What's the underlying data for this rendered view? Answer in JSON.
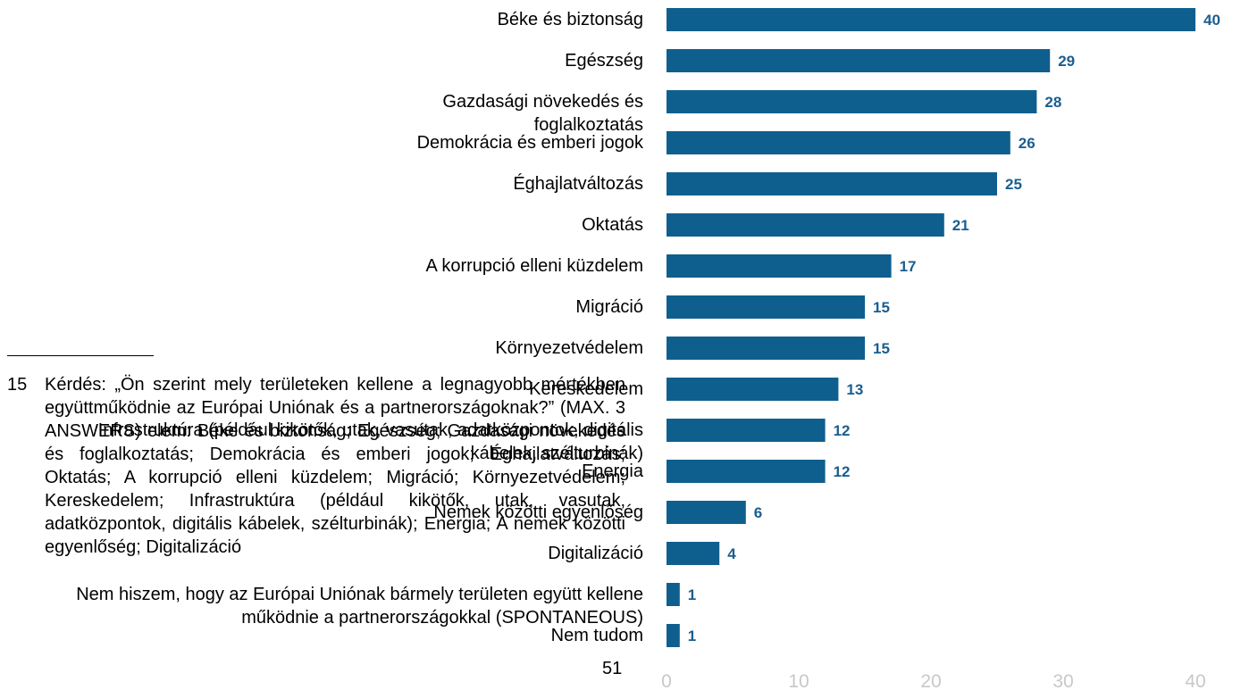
{
  "chart_data": {
    "type": "barh",
    "categories": [
      "Béke és biztonság",
      "Egészség",
      "Gazdasági növekedés és foglalkoztatás",
      "Demokrácia és emberi jogok",
      "Éghajlatváltozás",
      "Oktatás",
      "A korrupció elleni küzdelem",
      "Migráció",
      "Környezetvédelem",
      "Kereskedelem",
      "Infrastruktúra (például kikötők, utak, vasutak, adatközpontok, digitális kábelek, szélturbinák)",
      "Energia",
      "Nemek közötti egyenlőség",
      "Digitalizáció",
      "Nem hiszem, hogy az Európai Uniónak bármely területen együtt kellene működnie a partnerországokkal (SPONTANEOUS)",
      "Nem tudom"
    ],
    "values": [
      40,
      29,
      28,
      26,
      25,
      21,
      17,
      15,
      15,
      13,
      12,
      12,
      6,
      4,
      1,
      1
    ],
    "color": "#0f5f8e",
    "xlim": [
      0,
      40
    ],
    "xticks": [
      0,
      10,
      20,
      30,
      40
    ]
  },
  "footnote": {
    "number": "15",
    "text": "Kérdés: „Ön szerint mely területeken kellene a legnagyobb mértékben együttműködnie az Európai Uniónak és a partnerországoknak?” (MAX. 3 ANSWERS) elem: Béke és biztonság; Egészség; Gazdasági növekedés és foglalkoztatás; Demokrácia és emberi jogok; Éghajlatváltozás; Oktatás; A korrupció elleni küzdelem; Migráció; Környezetvédelem; Kereskedelem; Infrastruktúra (például kikötők, utak, vasutak, adatközpontok, digitális kábelek, szélturbinák); Energia; A nemek közötti egyenlőség; Digitalizáció"
  },
  "page_number": "51"
}
